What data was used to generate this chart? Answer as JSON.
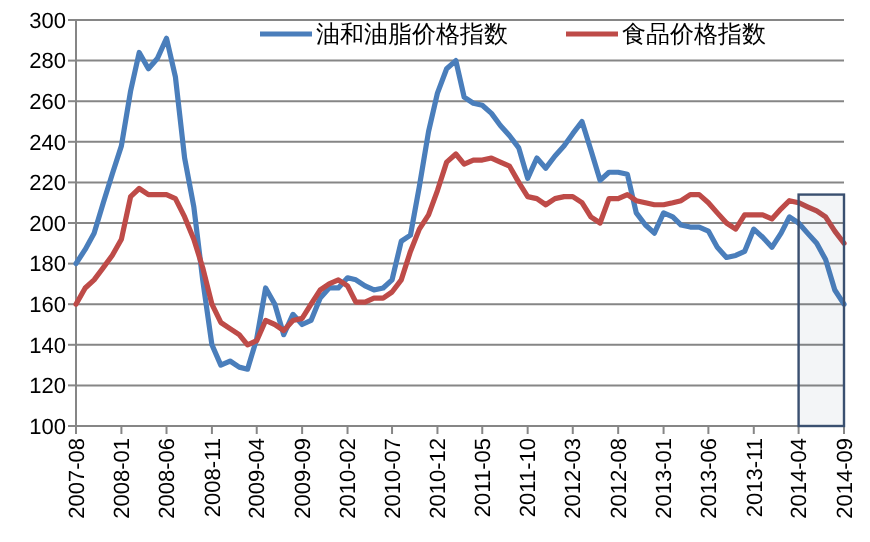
{
  "chart_data": {
    "type": "line",
    "x": [
      "2007-08",
      "2007-09",
      "2007-10",
      "2007-11",
      "2007-12",
      "2008-01",
      "2008-02",
      "2008-03",
      "2008-04",
      "2008-05",
      "2008-06",
      "2008-07",
      "2008-08",
      "2008-09",
      "2008-10",
      "2008-11",
      "2008-12",
      "2009-01",
      "2009-02",
      "2009-03",
      "2009-04",
      "2009-05",
      "2009-06",
      "2009-07",
      "2009-08",
      "2009-09",
      "2009-10",
      "2009-11",
      "2009-12",
      "2010-01",
      "2010-02",
      "2010-03",
      "2010-04",
      "2010-05",
      "2010-06",
      "2010-07",
      "2010-08",
      "2010-09",
      "2010-10",
      "2010-11",
      "2010-12",
      "2011-01",
      "2011-02",
      "2011-03",
      "2011-04",
      "2011-05",
      "2011-06",
      "2011-07",
      "2011-08",
      "2011-09",
      "2011-10",
      "2011-11",
      "2011-12",
      "2012-01",
      "2012-02",
      "2012-03",
      "2012-04",
      "2012-05",
      "2012-06",
      "2012-07",
      "2012-08",
      "2012-09",
      "2012-10",
      "2012-11",
      "2012-12",
      "2013-01",
      "2013-02",
      "2013-03",
      "2013-04",
      "2013-05",
      "2013-06",
      "2013-07",
      "2013-08",
      "2013-09",
      "2013-10",
      "2013-11",
      "2013-12",
      "2014-01",
      "2014-02",
      "2014-03",
      "2014-04",
      "2014-05",
      "2014-06",
      "2014-07",
      "2014-08",
      "2014-09"
    ],
    "series": [
      {
        "name": "油和油脂价格指数",
        "color": "#4a7ebb",
        "values": [
          180,
          187,
          195,
          210,
          224,
          238,
          265,
          284,
          276,
          281,
          291,
          272,
          232,
          208,
          172,
          140,
          130,
          132,
          129,
          128,
          143,
          168,
          160,
          145,
          155,
          150,
          152,
          163,
          168,
          168,
          173,
          172,
          169,
          167,
          168,
          172,
          191,
          194,
          218,
          245,
          264,
          276,
          280,
          262,
          259,
          258,
          254,
          248,
          243,
          237,
          222,
          232,
          227,
          233,
          238,
          244,
          250,
          236,
          221,
          225,
          225,
          224,
          205,
          199,
          195,
          205,
          203,
          199,
          198,
          198,
          196,
          188,
          183,
          184,
          186,
          197,
          193,
          188,
          195,
          203,
          200,
          195,
          190,
          182,
          167,
          160
        ]
      },
      {
        "name": "食品价格指数",
        "color": "#be4b48",
        "values": [
          160,
          168,
          172,
          178,
          184,
          192,
          213,
          217,
          214,
          214,
          214,
          212,
          203,
          192,
          178,
          160,
          151,
          148,
          145,
          140,
          142,
          152,
          150,
          147,
          152,
          153,
          160,
          167,
          170,
          172,
          169,
          161,
          161,
          163,
          163,
          166,
          172,
          186,
          197,
          204,
          216,
          230,
          234,
          229,
          231,
          231,
          232,
          230,
          228,
          220,
          213,
          212,
          209,
          212,
          213,
          213,
          210,
          203,
          200,
          212,
          212,
          214,
          211,
          210,
          209,
          209,
          210,
          211,
          214,
          214,
          210,
          205,
          200,
          197,
          204,
          204,
          204,
          202,
          207,
          211,
          210,
          208,
          206,
          203,
          196,
          190
        ]
      }
    ],
    "xlim": [
      "2007-08",
      "2014-09"
    ],
    "xticks": [
      "2007-08",
      "2008-01",
      "2008-06",
      "2008-11",
      "2009-04",
      "2009-09",
      "2010-02",
      "2010-07",
      "2010-12",
      "2011-05",
      "2011-10",
      "2012-03",
      "2012-08",
      "2013-01",
      "2013-06",
      "2013-11",
      "2014-04",
      "2014-09"
    ],
    "ylim": [
      100,
      300
    ],
    "yticks": [
      100,
      120,
      140,
      160,
      180,
      200,
      220,
      240,
      260,
      280,
      300
    ],
    "grid": "y",
    "legend": "top",
    "bands": [
      {
        "axis": "x",
        "from": "2014-04",
        "to": "2014-09",
        "color": "#3a5070"
      }
    ]
  }
}
